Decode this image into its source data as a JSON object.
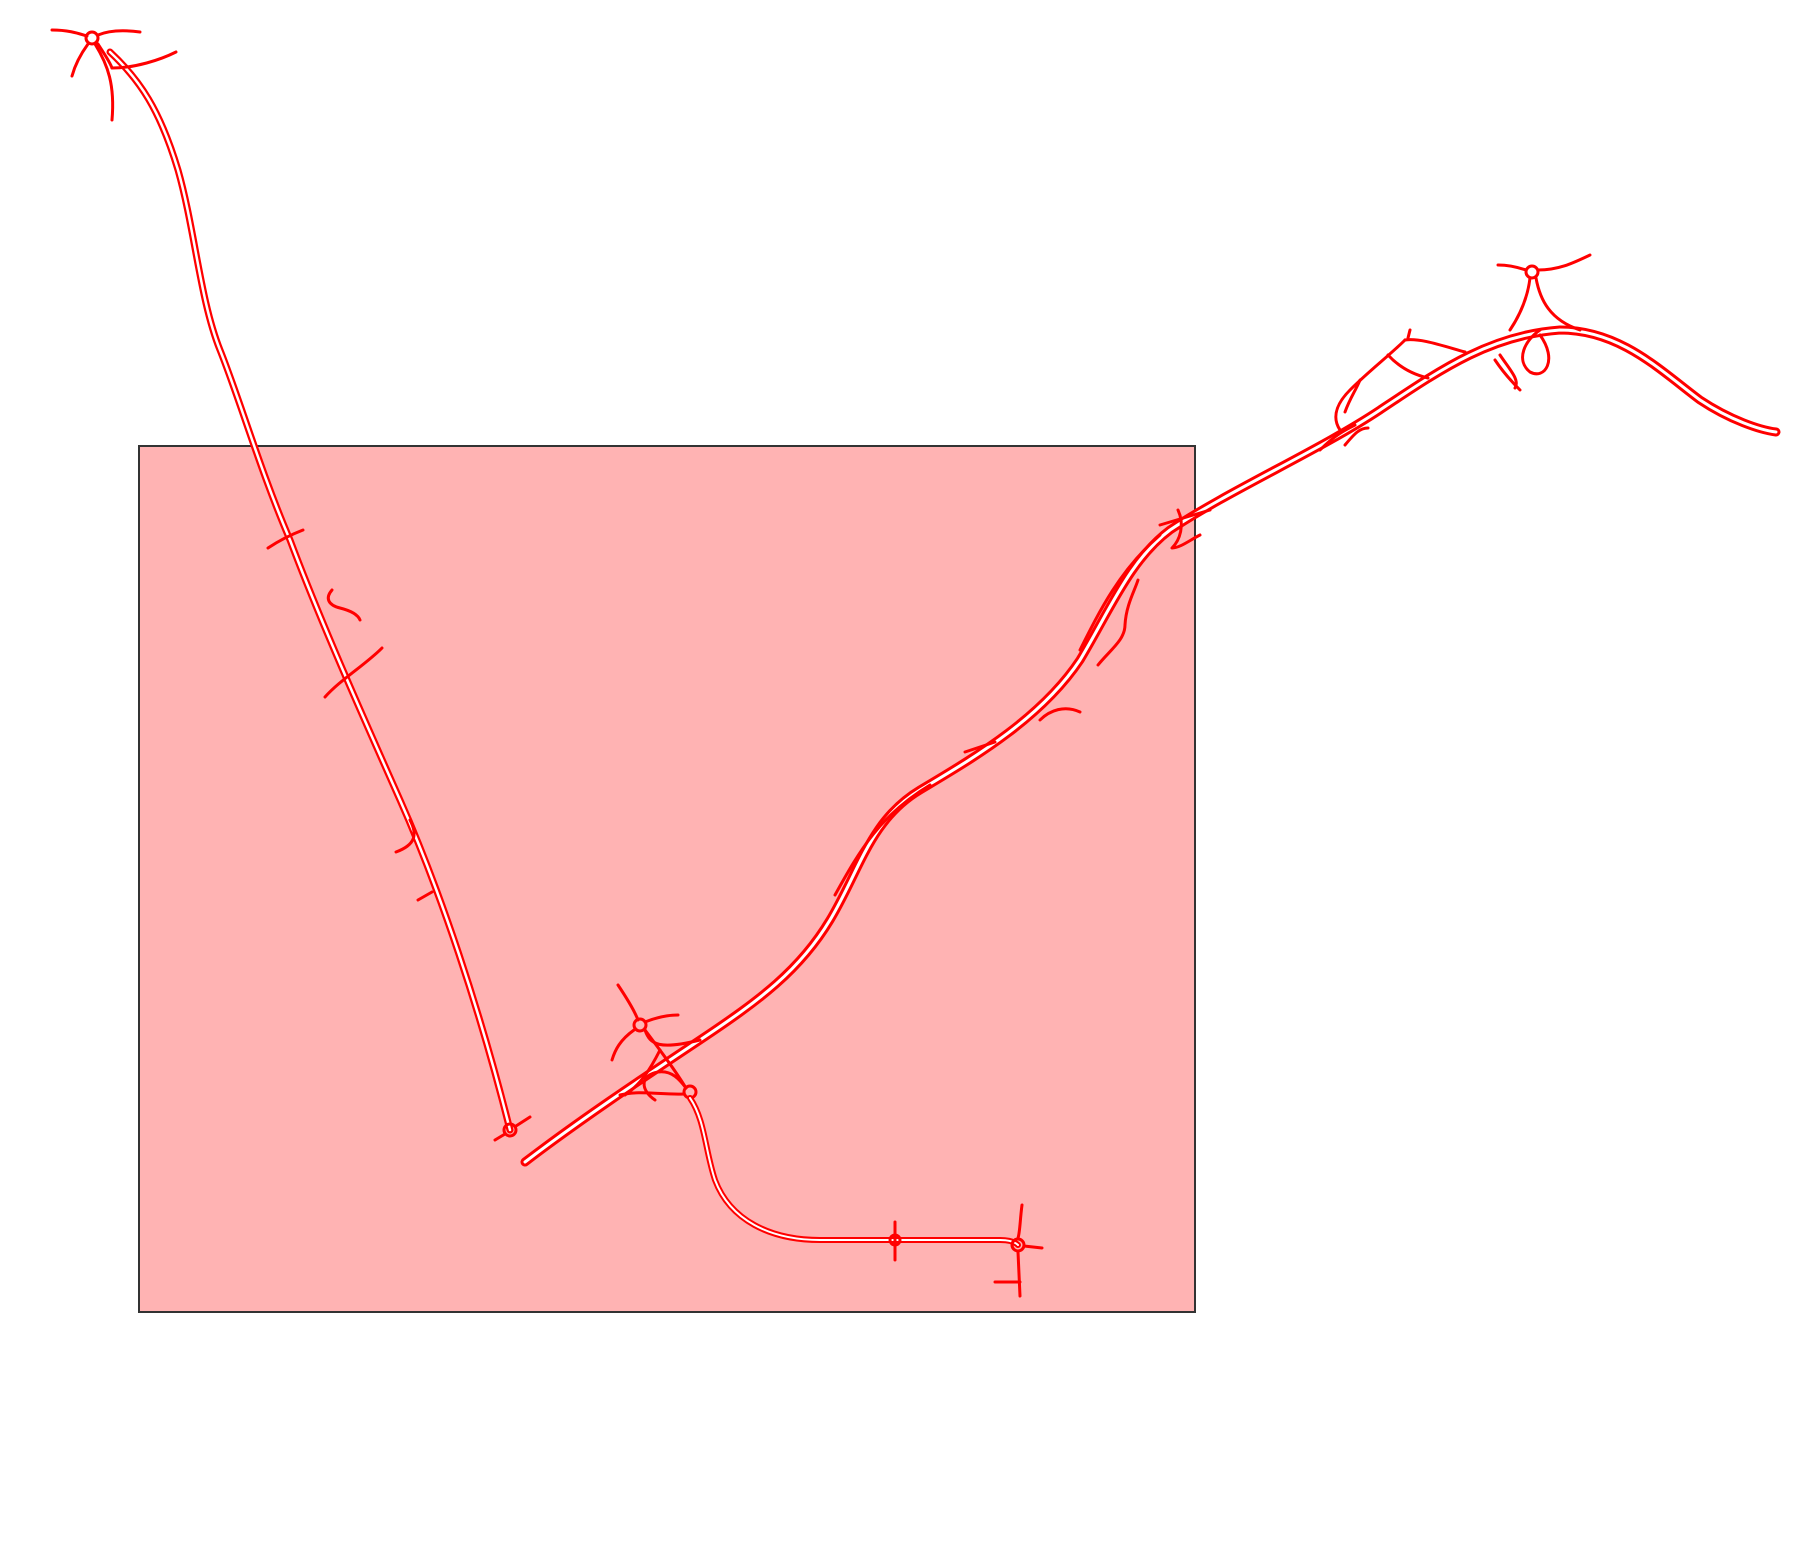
{
  "map": {
    "background_color": "#ffffff",
    "road_color": "#ff0000",
    "road_casing_color": "#ffffff",
    "highlight_fill": "#ff8080",
    "highlight_fill_opacity": 0.6,
    "highlight_stroke": "#333333",
    "features": [
      "north-west-road",
      "east-highway",
      "south-spur-road",
      "interchanges",
      "roundabouts",
      "side-roads"
    ],
    "highlight_area": "selection-rectangle"
  }
}
